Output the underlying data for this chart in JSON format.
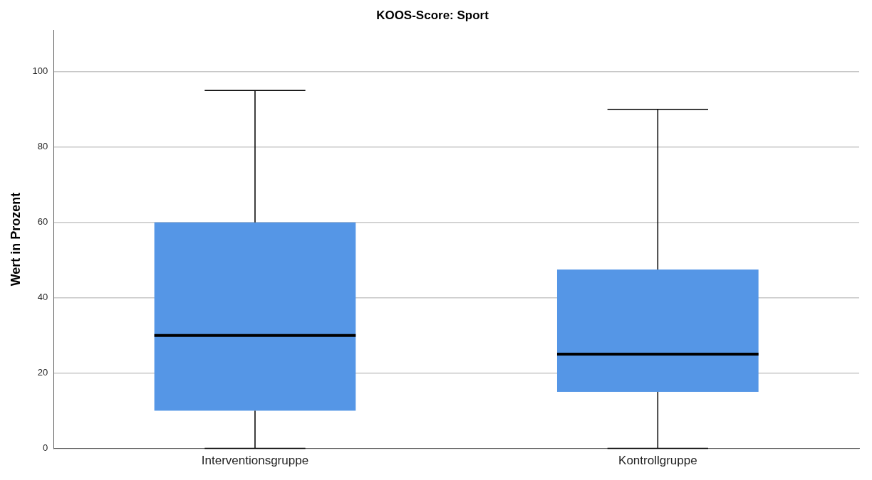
{
  "chart_data": {
    "type": "box",
    "title": "KOOS-Score: Sport",
    "ylabel": "Wert in Prozent",
    "categories": [
      "Interventionsgruppe",
      "Kontrollgruppe"
    ],
    "series": [
      {
        "color": "#5596e6",
        "boxes": [
          {
            "low": 0,
            "q1": 10,
            "median": 30,
            "q3": 60,
            "high": 95
          },
          {
            "low": 0,
            "q1": 15,
            "median": 25,
            "q3": 47.5,
            "high": 90
          }
        ]
      }
    ],
    "ylim": [
      0,
      111
    ],
    "yticks": [
      0,
      20,
      40,
      60,
      80,
      100
    ],
    "grid": "y"
  }
}
